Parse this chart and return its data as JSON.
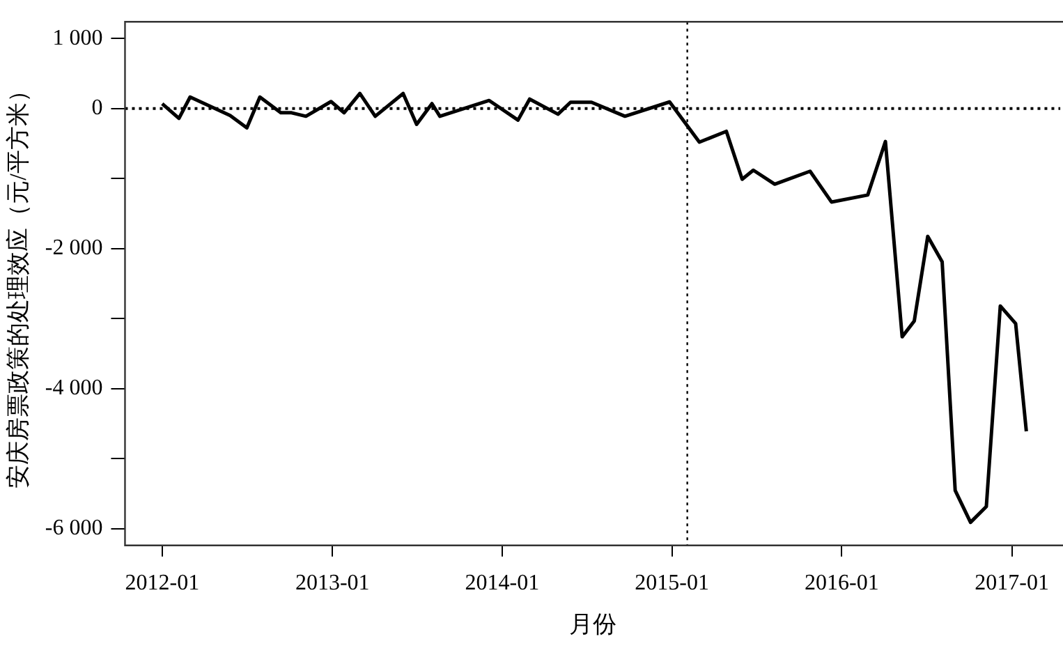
{
  "chart_data": {
    "type": "line",
    "xlabel": "月份",
    "ylabel": "安庆房票政策的处理效应（元/平方米）",
    "x": [
      "2012-01-01",
      "2012-02-06",
      "2012-03-01",
      "2012-05-26",
      "2012-07-01",
      "2012-07-29",
      "2012-09-12",
      "2012-10-05",
      "2012-11-05",
      "2012-12-29",
      "2013-01-26",
      "2013-03-01",
      "2013-04-03",
      "2013-06-02",
      "2013-07-01",
      "2013-08-03",
      "2013-08-20",
      "2013-12-04",
      "2014-02-04",
      "2014-03-01",
      "2014-05-01",
      "2014-05-28",
      "2014-07-12",
      "2014-09-22",
      "2014-12-27",
      "2015-03-01",
      "2015-04-28",
      "2015-06-01",
      "2015-06-25",
      "2015-08-10",
      "2015-10-25",
      "2015-12-10",
      "2016-02-26",
      "2016-04-04",
      "2016-05-10",
      "2016-06-05",
      "2016-07-04",
      "2016-08-04",
      "2016-09-01",
      "2016-10-04",
      "2016-11-07",
      "2016-12-07",
      "2017-01-09",
      "2017-02-01"
    ],
    "series": [
      {
        "color": "#000000",
        "values": [
          70,
          -140,
          165,
          -100,
          -275,
          165,
          -60,
          -60,
          -110,
          100,
          -60,
          215,
          -110,
          215,
          -225,
          70,
          -110,
          115,
          -165,
          135,
          -80,
          90,
          90,
          -110,
          95,
          -480,
          -325,
          -1010,
          -880,
          -1080,
          -895,
          -1335,
          -1235,
          -470,
          -3260,
          -3035,
          -1825,
          -2190,
          -5455,
          -5910,
          -5685,
          -2820,
          -3070,
          -4610
        ]
      }
    ],
    "xlim": [
      "2011-10-13",
      "2017-04-15"
    ],
    "xticks": [
      "2012-01",
      "2013-01",
      "2014-01",
      "2015-01",
      "2016-01",
      "2017-01"
    ],
    "ylim": [
      -6240,
      1240
    ],
    "yticks": [
      {
        "value": 1000,
        "label": "1 000"
      },
      0,
      {
        "value": -1000,
        "label": null
      },
      {
        "value": -2000,
        "label": "-2 000"
      },
      {
        "value": -3000,
        "label": null
      },
      {
        "value": -4000,
        "label": "-4 000"
      },
      {
        "value": -5000,
        "label": null
      },
      {
        "value": -6000,
        "label": "-6 000"
      }
    ],
    "ref_lines": [
      {
        "axis": "x",
        "value": "2015-02-03",
        "line_style": "dotted"
      },
      {
        "axis": "y",
        "value": 0,
        "line_style": "dotted"
      }
    ],
    "grid": false,
    "legend": false,
    "marker": "none",
    "line_style": "solid"
  }
}
